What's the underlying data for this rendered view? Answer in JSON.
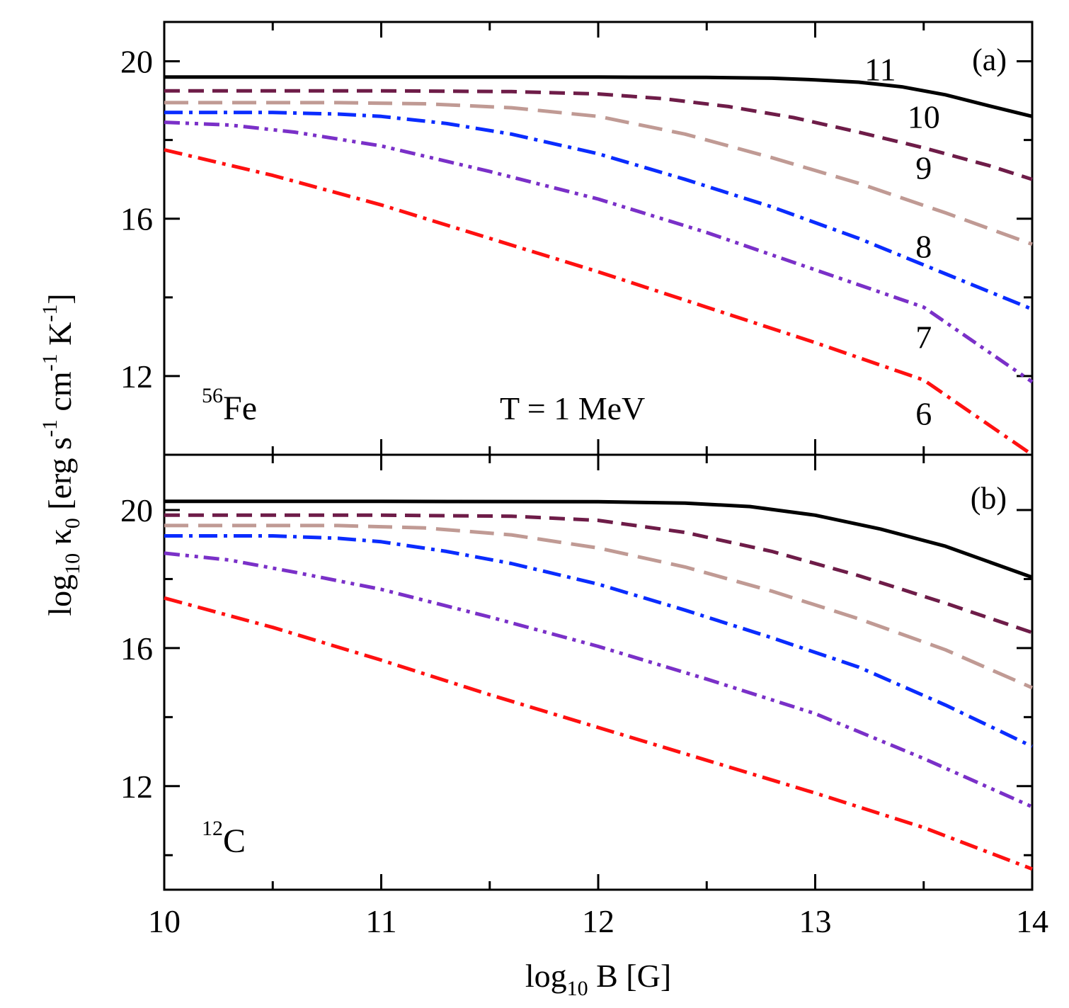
{
  "chart_data": [
    {
      "id": "a",
      "type": "line",
      "panel_label": "(a)",
      "nucleus_mass": "56",
      "nucleus_symbol": "Fe",
      "annotation": "T = 1 MeV",
      "xlim": [
        10,
        14
      ],
      "ylim": [
        10,
        21
      ],
      "yticks": [
        "12",
        "16",
        "20"
      ],
      "series": [
        {
          "name": "11",
          "color": "#000000",
          "style": "solid",
          "x": [
            10,
            11,
            12,
            12.5,
            12.8,
            13.0,
            13.2,
            13.4,
            13.6,
            13.8,
            14.0
          ],
          "y": [
            19.6,
            19.6,
            19.6,
            19.59,
            19.57,
            19.53,
            19.47,
            19.35,
            19.15,
            18.87,
            18.6
          ]
        },
        {
          "name": "10",
          "color": "#6e1c48",
          "style": "dash",
          "x": [
            10,
            11,
            11.6,
            12.0,
            12.3,
            12.6,
            12.9,
            13.2,
            13.5,
            13.8,
            14.0
          ],
          "y": [
            19.25,
            19.25,
            19.23,
            19.17,
            19.05,
            18.85,
            18.57,
            18.2,
            17.8,
            17.35,
            17.0
          ]
        },
        {
          "name": "9",
          "color": "#c09a94",
          "style": "longdash",
          "x": [
            10,
            10.8,
            11.2,
            11.6,
            12.0,
            12.4,
            12.8,
            13.2,
            13.6,
            14.0
          ],
          "y": [
            18.95,
            18.95,
            18.92,
            18.82,
            18.6,
            18.15,
            17.55,
            16.9,
            16.15,
            15.35
          ]
        },
        {
          "name": "8",
          "color": "#0a2cff",
          "style": "dashdot",
          "x": [
            10,
            10.5,
            10.8,
            11.0,
            11.3,
            11.6,
            12.0,
            12.4,
            12.8,
            13.2,
            13.6,
            14.0
          ],
          "y": [
            18.7,
            18.7,
            18.66,
            18.6,
            18.42,
            18.15,
            17.65,
            17.0,
            16.3,
            15.5,
            14.6,
            13.7
          ]
        },
        {
          "name": "7",
          "color": "#7a30c8",
          "style": "dashdotdot",
          "x": [
            10,
            10.3,
            10.6,
            11.0,
            11.5,
            12.0,
            12.5,
            13.0,
            13.5,
            14.0
          ],
          "y": [
            18.45,
            18.38,
            18.2,
            17.85,
            17.2,
            16.5,
            15.65,
            14.7,
            13.75,
            11.85
          ]
        },
        {
          "name": "6",
          "color": "#ff1010",
          "style": "dashdot",
          "x": [
            10,
            10.5,
            11.0,
            11.5,
            12.0,
            12.5,
            13.0,
            13.5,
            14.0
          ],
          "y": [
            17.75,
            17.1,
            16.35,
            15.5,
            14.65,
            13.75,
            12.85,
            11.9,
            10.0
          ]
        }
      ],
      "series_label_positions": [
        {
          "name": "11",
          "x": 13.3,
          "y": 19.8
        },
        {
          "name": "10",
          "x": 13.5,
          "y": 18.6
        },
        {
          "name": "9",
          "x": 13.5,
          "y": 17.3
        },
        {
          "name": "8",
          "x": 13.5,
          "y": 15.3
        },
        {
          "name": "7",
          "x": 13.5,
          "y": 13.0
        },
        {
          "name": "6",
          "x": 13.5,
          "y": 11.05
        }
      ]
    },
    {
      "id": "b",
      "type": "line",
      "panel_label": "(b)",
      "nucleus_mass": "12",
      "nucleus_symbol": "C",
      "xlim": [
        10,
        14
      ],
      "ylim": [
        9,
        21.6
      ],
      "yticks": [
        "12",
        "16",
        "20"
      ],
      "series": [
        {
          "name": "11",
          "color": "#000000",
          "style": "solid",
          "x": [
            10,
            11,
            12,
            12.4,
            12.7,
            13.0,
            13.3,
            13.6,
            14.0
          ],
          "y": [
            20.25,
            20.25,
            20.24,
            20.2,
            20.1,
            19.85,
            19.45,
            18.95,
            18.05
          ]
        },
        {
          "name": "10",
          "color": "#6e1c48",
          "style": "dash",
          "x": [
            10,
            11,
            11.6,
            12.0,
            12.4,
            12.8,
            13.2,
            13.6,
            14.0
          ],
          "y": [
            19.85,
            19.85,
            19.82,
            19.7,
            19.35,
            18.8,
            18.1,
            17.3,
            16.45
          ]
        },
        {
          "name": "9",
          "color": "#c09a94",
          "style": "longdash",
          "x": [
            10,
            10.8,
            11.2,
            11.6,
            12.0,
            12.4,
            12.8,
            13.2,
            13.6,
            14.0
          ],
          "y": [
            19.55,
            19.55,
            19.48,
            19.28,
            18.9,
            18.35,
            17.65,
            16.85,
            15.95,
            14.85
          ]
        },
        {
          "name": "8",
          "color": "#0a2cff",
          "style": "dashdot",
          "x": [
            10,
            10.5,
            10.8,
            11.0,
            11.3,
            11.6,
            12.0,
            12.4,
            12.8,
            13.2,
            13.6,
            14.0
          ],
          "y": [
            19.25,
            19.25,
            19.18,
            19.08,
            18.8,
            18.45,
            17.85,
            17.1,
            16.3,
            15.45,
            14.35,
            13.15
          ]
        },
        {
          "name": "7",
          "color": "#7a30c8",
          "style": "dashdotdot",
          "x": [
            10,
            10.3,
            10.6,
            11.0,
            11.5,
            12.0,
            12.5,
            13.0,
            13.5,
            14.0
          ],
          "y": [
            18.75,
            18.55,
            18.2,
            17.7,
            16.9,
            16.05,
            15.1,
            14.1,
            12.8,
            11.4
          ]
        },
        {
          "name": "6",
          "color": "#ff1010",
          "style": "dashdot",
          "x": [
            10,
            10.5,
            11.0,
            11.5,
            12.0,
            12.5,
            13.0,
            13.5,
            14.0
          ],
          "y": [
            17.45,
            16.6,
            15.65,
            14.65,
            13.7,
            12.75,
            11.8,
            10.8,
            9.6
          ]
        }
      ]
    }
  ],
  "xaxis": {
    "ticks": [
      "10",
      "11",
      "12",
      "13",
      "14"
    ],
    "label_prefix": "log",
    "label_sub": "10",
    "label_suffix": " B [G]"
  },
  "yaxis": {
    "label_prefix": "log",
    "label_sub": "10",
    "label_kappa": " κ",
    "label_kappa_sub": "0",
    "label_units_1": " [erg  s",
    "label_exp_1": "-1",
    "label_units_2": " cm",
    "label_exp_2": "-1",
    "label_units_3": " K",
    "label_exp_3": "-1",
    "label_close": "]"
  }
}
